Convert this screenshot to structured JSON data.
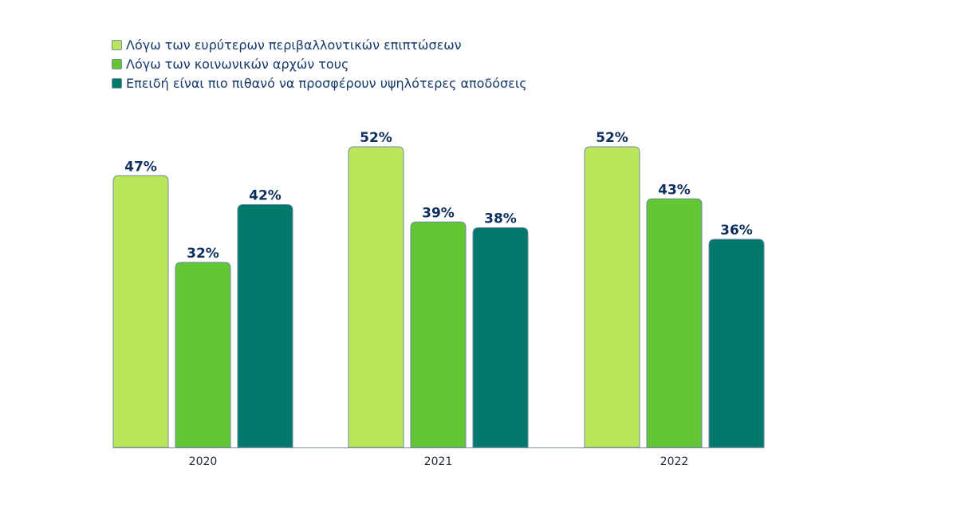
{
  "chart_data": {
    "type": "bar",
    "title": "",
    "xlabel": "",
    "ylabel": "",
    "ylim": [
      0,
      52
    ],
    "grid": false,
    "legend_position": "top-left",
    "categories": [
      "2020",
      "2021",
      "2022"
    ],
    "series": [
      {
        "name": "Λόγω των ευρύτερων περιβαλλοντικών επιπτώσεων",
        "color": "#b9e65a",
        "values": [
          47,
          52,
          52
        ],
        "labels": [
          "47%",
          "52%",
          "52%"
        ]
      },
      {
        "name": "Λόγω των κοινωνικών αρχών τους",
        "color": "#63c633",
        "values": [
          32,
          39,
          43
        ],
        "labels": [
          "32%",
          "39%",
          "43%"
        ]
      },
      {
        "name": "Επειδή είναι πιο πιθανό να προσφέρουν υψηλότερες αποδόσεις",
        "color": "#00786a",
        "values": [
          42,
          38,
          36
        ],
        "labels": [
          "42%",
          "38%",
          "36%"
        ]
      }
    ],
    "text_color": "#0f2f5f"
  }
}
